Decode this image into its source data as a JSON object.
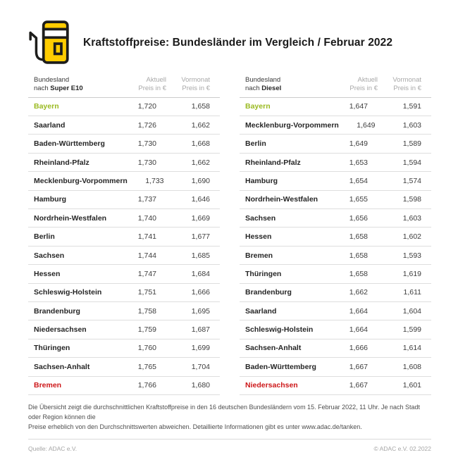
{
  "header": {
    "title": "Kraftstoffpreise: Bundesländer im Vergleich / Februar 2022"
  },
  "colors": {
    "adac_yellow": "#FFCC00",
    "outline_black": "#1d1d1b",
    "cheapest_green": "#9ABA20",
    "most_expensive_red": "#CD1719",
    "header_gray": "#A8A8A8",
    "divider_gray": "#DEDEDE"
  },
  "tables": [
    {
      "header": {
        "name_line1": "Bundesland",
        "name_line2_prefix": "nach ",
        "name_line2_bold": "Super E10",
        "col2_line1": "Aktuell",
        "col2_line2": "Preis in €",
        "col3_line1": "Vormonat",
        "col3_line2": "Preis in €"
      },
      "rows": [
        {
          "name": "Bayern",
          "aktuell": "1,720",
          "vormonat": "1,658",
          "highlight": "green"
        },
        {
          "name": "Saarland",
          "aktuell": "1,726",
          "vormonat": "1,662"
        },
        {
          "name": "Baden-Württemberg",
          "aktuell": "1,730",
          "vormonat": "1,668"
        },
        {
          "name": "Rheinland-Pfalz",
          "aktuell": "1,730",
          "vormonat": "1,662"
        },
        {
          "name": "Mecklenburg-Vorpommern",
          "aktuell": "1,733",
          "vormonat": "1,690"
        },
        {
          "name": "Hamburg",
          "aktuell": "1,737",
          "vormonat": "1,646"
        },
        {
          "name": "Nordrhein-Westfalen",
          "aktuell": "1,740",
          "vormonat": "1,669"
        },
        {
          "name": "Berlin",
          "aktuell": "1,741",
          "vormonat": "1,677"
        },
        {
          "name": "Sachsen",
          "aktuell": "1,744",
          "vormonat": "1,685"
        },
        {
          "name": "Hessen",
          "aktuell": "1,747",
          "vormonat": "1,684"
        },
        {
          "name": "Schleswig-Holstein",
          "aktuell": "1,751",
          "vormonat": "1,666"
        },
        {
          "name": "Brandenburg",
          "aktuell": "1,758",
          "vormonat": "1,695"
        },
        {
          "name": "Niedersachsen",
          "aktuell": "1,759",
          "vormonat": "1,687"
        },
        {
          "name": "Thüringen",
          "aktuell": "1,760",
          "vormonat": "1,699"
        },
        {
          "name": "Sachsen-Anhalt",
          "aktuell": "1,765",
          "vormonat": "1,704"
        },
        {
          "name": "Bremen",
          "aktuell": "1,766",
          "vormonat": "1,680",
          "highlight": "red"
        }
      ]
    },
    {
      "header": {
        "name_line1": "Bundesland",
        "name_line2_prefix": "nach ",
        "name_line2_bold": "Diesel",
        "col2_line1": "Aktuell",
        "col2_line2": "Preis in €",
        "col3_line1": "Vormonat",
        "col3_line2": "Preis in €"
      },
      "rows": [
        {
          "name": "Bayern",
          "aktuell": "1,647",
          "vormonat": "1,591",
          "highlight": "green"
        },
        {
          "name": "Mecklenburg-Vorpommern",
          "aktuell": "1,649",
          "vormonat": "1,603"
        },
        {
          "name": "Berlin",
          "aktuell": "1,649",
          "vormonat": "1,589"
        },
        {
          "name": "Rheinland-Pfalz",
          "aktuell": "1,653",
          "vormonat": "1,594"
        },
        {
          "name": "Hamburg",
          "aktuell": "1,654",
          "vormonat": "1,574"
        },
        {
          "name": "Nordrhein-Westfalen",
          "aktuell": "1,655",
          "vormonat": "1,598"
        },
        {
          "name": "Sachsen",
          "aktuell": "1,656",
          "vormonat": "1,603"
        },
        {
          "name": "Hessen",
          "aktuell": "1,658",
          "vormonat": "1,602"
        },
        {
          "name": "Bremen",
          "aktuell": "1,658",
          "vormonat": "1,593"
        },
        {
          "name": "Thüringen",
          "aktuell": "1,658",
          "vormonat": "1,619"
        },
        {
          "name": "Brandenburg",
          "aktuell": "1,662",
          "vormonat": "1,611"
        },
        {
          "name": "Saarland",
          "aktuell": "1,664",
          "vormonat": "1,604"
        },
        {
          "name": "Schleswig-Holstein",
          "aktuell": "1,664",
          "vormonat": "1,599"
        },
        {
          "name": "Sachsen-Anhalt",
          "aktuell": "1,666",
          "vormonat": "1,614"
        },
        {
          "name": "Baden-Württemberg",
          "aktuell": "1,667",
          "vormonat": "1,608"
        },
        {
          "name": "Niedersachsen",
          "aktuell": "1,667",
          "vormonat": "1,601",
          "highlight": "red"
        }
      ]
    }
  ],
  "footer": {
    "note_line1": "Die Übersicht zeigt die durchschnittlichen Kraftstoffpreise in den 16 deutschen Bundesländern vom 15. Februar 2022, 11 Uhr. Je nach Stadt oder Region können die",
    "note_line2": "Preise erheblich von den Durchschnittswerten abweichen. Detaillierte Informationen gibt es unter www.adac.de/tanken.",
    "source": "Quelle: ADAC e.V.",
    "copyright": "© ADAC e.V. 02.2022"
  },
  "chart_data": [
    {
      "type": "table",
      "title": "Bundesland nach Super E10",
      "columns": [
        "Bundesland",
        "Aktuell Preis in €",
        "Vormonat Preis in €"
      ],
      "rows": [
        [
          "Bayern",
          1.72,
          1.658
        ],
        [
          "Saarland",
          1.726,
          1.662
        ],
        [
          "Baden-Württemberg",
          1.73,
          1.668
        ],
        [
          "Rheinland-Pfalz",
          1.73,
          1.662
        ],
        [
          "Mecklenburg-Vorpommern",
          1.733,
          1.69
        ],
        [
          "Hamburg",
          1.737,
          1.646
        ],
        [
          "Nordrhein-Westfalen",
          1.74,
          1.669
        ],
        [
          "Berlin",
          1.741,
          1.677
        ],
        [
          "Sachsen",
          1.744,
          1.685
        ],
        [
          "Hessen",
          1.747,
          1.684
        ],
        [
          "Schleswig-Holstein",
          1.751,
          1.666
        ],
        [
          "Brandenburg",
          1.758,
          1.695
        ],
        [
          "Niedersachsen",
          1.759,
          1.687
        ],
        [
          "Thüringen",
          1.76,
          1.699
        ],
        [
          "Sachsen-Anhalt",
          1.765,
          1.704
        ],
        [
          "Bremen",
          1.766,
          1.68
        ]
      ],
      "annotations": {
        "cheapest_green": "Bayern",
        "most_expensive_red": "Bremen"
      }
    },
    {
      "type": "table",
      "title": "Bundesland nach Diesel",
      "columns": [
        "Bundesland",
        "Aktuell Preis in €",
        "Vormonat Preis in €"
      ],
      "rows": [
        [
          "Bayern",
          1.647,
          1.591
        ],
        [
          "Mecklenburg-Vorpommern",
          1.649,
          1.603
        ],
        [
          "Berlin",
          1.649,
          1.589
        ],
        [
          "Rheinland-Pfalz",
          1.653,
          1.594
        ],
        [
          "Hamburg",
          1.654,
          1.574
        ],
        [
          "Nordrhein-Westfalen",
          1.655,
          1.598
        ],
        [
          "Sachsen",
          1.656,
          1.603
        ],
        [
          "Hessen",
          1.658,
          1.602
        ],
        [
          "Bremen",
          1.658,
          1.593
        ],
        [
          "Thüringen",
          1.658,
          1.619
        ],
        [
          "Brandenburg",
          1.662,
          1.611
        ],
        [
          "Saarland",
          1.664,
          1.604
        ],
        [
          "Schleswig-Holstein",
          1.664,
          1.599
        ],
        [
          "Sachsen-Anhalt",
          1.666,
          1.614
        ],
        [
          "Baden-Württemberg",
          1.667,
          1.608
        ],
        [
          "Niedersachsen",
          1.667,
          1.601
        ]
      ],
      "annotations": {
        "cheapest_green": "Bayern",
        "most_expensive_red": "Niedersachsen"
      }
    }
  ]
}
